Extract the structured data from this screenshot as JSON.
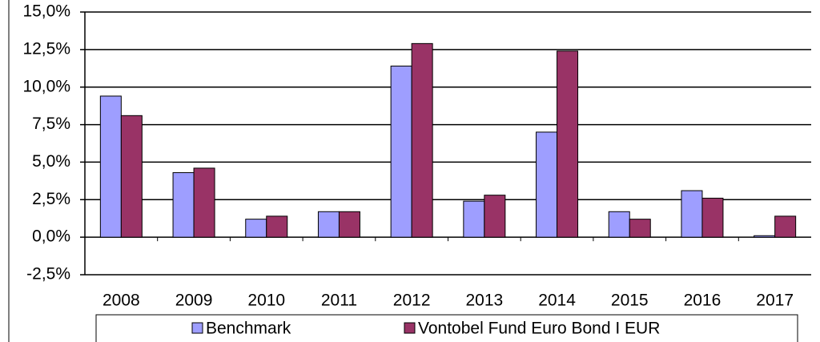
{
  "chart_data": {
    "type": "bar",
    "categories": [
      "2008",
      "2009",
      "2010",
      "2011",
      "2012",
      "2013",
      "2014",
      "2015",
      "2016",
      "2017"
    ],
    "series": [
      {
        "name": "Benchmark",
        "color": "#9e9eff",
        "values": [
          9.4,
          4.3,
          1.2,
          1.7,
          11.4,
          2.4,
          7.0,
          1.7,
          3.1,
          0.1
        ]
      },
      {
        "name": "Vontobel Fund Euro Bond I EUR",
        "color": "#993366",
        "values": [
          8.1,
          4.6,
          1.4,
          1.7,
          12.9,
          2.8,
          12.4,
          1.2,
          2.6,
          1.4
        ]
      }
    ],
    "ylim": [
      -2.5,
      15
    ],
    "yticks": [
      {
        "value": -2.5,
        "label": "-2,5%"
      },
      {
        "value": 0,
        "label": "0,0%"
      },
      {
        "value": 2.5,
        "label": "2,5%"
      },
      {
        "value": 5,
        "label": "5,0%"
      },
      {
        "value": 7.5,
        "label": "7,5%"
      },
      {
        "value": 10,
        "label": "10,0%"
      },
      {
        "value": 12.5,
        "label": "12,5%"
      },
      {
        "value": 15,
        "label": "15,0%"
      }
    ],
    "grid": true,
    "legend": "bottom"
  }
}
